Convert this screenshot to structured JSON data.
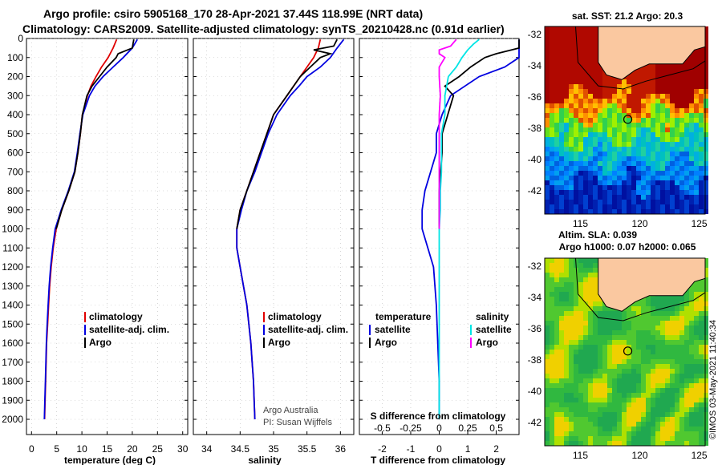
{
  "header": {
    "line1": "Argo profile: csiro 5905168_170 28-Apr-2021 37.44S 118.99E (NRT data)",
    "line2": "Climatology: CARS2009. Satellite-adjusted climatology: synTS_20210428.nc (0.91d earlier)"
  },
  "colors": {
    "climatology": "#e00000",
    "satellite": "#0000e0",
    "argo": "#000000",
    "salinity_sat": "#00e5e5",
    "salinity_argo": "#ff00ff",
    "land": "#fac8a0"
  },
  "chart_data": [
    {
      "type": "line",
      "panel": "temperature",
      "xlabel": "temperature (deg C)",
      "ylabel": "",
      "xlim": [
        -1,
        31
      ],
      "ylim": [
        2080,
        0
      ],
      "xticks": [
        0,
        5,
        10,
        15,
        20,
        25,
        30
      ],
      "yticks": [
        0,
        100,
        200,
        300,
        400,
        500,
        600,
        700,
        800,
        900,
        1000,
        1100,
        1200,
        1300,
        1400,
        1500,
        1600,
        1700,
        1800,
        1900,
        2000
      ],
      "legend": [
        "climatology",
        "satellite-adj. clim.",
        "Argo"
      ],
      "series": [
        {
          "name": "climatology",
          "depth": [
            5,
            50,
            100,
            150,
            200,
            250,
            300,
            400,
            500,
            600,
            700,
            800,
            900,
            1000,
            1100,
            1200,
            1300,
            1400,
            1500,
            1600,
            1700,
            1800,
            1900,
            2000
          ],
          "values": [
            16.9,
            16.2,
            15.2,
            13.9,
            12.8,
            11.8,
            11.1,
            10.1,
            9.7,
            9.2,
            8.6,
            7.4,
            6.0,
            4.9,
            4.3,
            3.9,
            3.6,
            3.4,
            3.2,
            3.0,
            2.9,
            2.8,
            2.7,
            2.6
          ]
        },
        {
          "name": "satellite-adj. clim.",
          "depth": [
            5,
            50,
            100,
            150,
            200,
            250,
            300,
            400,
            500,
            600,
            700,
            800,
            900,
            1000,
            1100,
            1200,
            1300,
            1400,
            1500,
            1600,
            1700,
            1800,
            1900,
            2000
          ],
          "values": [
            21.0,
            20.0,
            18.2,
            16.2,
            14.2,
            12.6,
            11.5,
            10.2,
            9.6,
            9.1,
            8.5,
            7.3,
            5.9,
            4.7,
            4.2,
            3.8,
            3.5,
            3.3,
            3.1,
            2.95,
            2.85,
            2.75,
            2.65,
            2.55
          ]
        },
        {
          "name": "Argo",
          "depth": [
            5,
            50,
            80,
            100,
            150,
            200,
            250,
            300,
            400,
            500,
            600,
            700,
            800,
            900,
            1000
          ],
          "values": [
            20.3,
            20.0,
            17.2,
            16.8,
            15.0,
            13.5,
            12.0,
            11.0,
            10.1,
            9.7,
            9.2,
            8.6,
            7.4,
            6.0,
            4.9
          ]
        }
      ]
    },
    {
      "type": "line",
      "panel": "salinity",
      "xlabel": "salinity",
      "ylabel": "",
      "xlim": [
        33.8,
        36.2
      ],
      "ylim": [
        2080,
        0
      ],
      "xticks": [
        34,
        34.5,
        35,
        35.5,
        36
      ],
      "xticklabels": [
        "34",
        "34.5",
        "35",
        "35.5",
        "36"
      ],
      "legend": [
        "climatology",
        "satellite-adj. clim.",
        "Argo"
      ],
      "series": [
        {
          "name": "climatology",
          "depth": [
            5,
            50,
            100,
            150,
            200,
            250,
            300,
            400,
            500,
            600,
            700,
            800,
            900,
            1000,
            1100,
            1200,
            1300,
            1400,
            1500,
            1600,
            1700,
            1800,
            1900,
            2000
          ],
          "values": [
            35.7,
            35.67,
            35.6,
            35.5,
            35.4,
            35.3,
            35.2,
            35.0,
            34.9,
            34.8,
            34.7,
            34.6,
            34.5,
            34.45,
            34.45,
            34.5,
            34.55,
            34.6,
            34.63,
            34.66,
            34.68,
            34.7,
            34.71,
            34.72
          ]
        },
        {
          "name": "satellite-adj. clim.",
          "depth": [
            5,
            50,
            100,
            150,
            200,
            250,
            300,
            400,
            500,
            600,
            700,
            800,
            900,
            1000,
            1100,
            1200,
            1300,
            1400,
            1500,
            1600,
            1700,
            1800,
            1900,
            2000
          ],
          "values": [
            36.05,
            35.95,
            35.85,
            35.7,
            35.5,
            35.38,
            35.25,
            35.05,
            34.92,
            34.82,
            34.72,
            34.6,
            34.52,
            34.45,
            34.45,
            34.5,
            34.55,
            34.6,
            34.63,
            34.66,
            34.68,
            34.7,
            34.71,
            34.72
          ]
        },
        {
          "name": "Argo",
          "depth": [
            5,
            40,
            60,
            80,
            100,
            150,
            200,
            250,
            300,
            400,
            500,
            600,
            700,
            800,
            900,
            1000
          ],
          "values": [
            35.95,
            35.9,
            35.6,
            35.85,
            35.7,
            35.55,
            35.4,
            35.3,
            35.2,
            35.0,
            34.9,
            34.8,
            34.7,
            34.6,
            34.5,
            34.45
          ]
        }
      ]
    },
    {
      "type": "line",
      "panel": "difference",
      "xlabel": "T difference from climatology",
      "secondary_xlabel": "S difference from climatology",
      "xlim": [
        -2.8,
        2.8
      ],
      "ylim": [
        2080,
        0
      ],
      "xticks": [
        -2,
        -1,
        0,
        1,
        2
      ],
      "secondary_xticks": [
        -0.5,
        -0.25,
        0,
        0.25,
        0.5
      ],
      "secondary_xticklabels": [
        "-0.5",
        "-0.25",
        "0",
        "0.25",
        "0.5"
      ],
      "legend": {
        "temperature": [
          "satellite",
          "Argo"
        ],
        "salinity": [
          "satellite",
          "Argo"
        ]
      },
      "legend_headers": {
        "temperature": "temperature",
        "salinity": "salinity"
      },
      "series": [
        {
          "name": "T satellite",
          "depth": [
            5,
            50,
            100,
            150,
            200,
            300,
            400,
            500,
            600,
            700,
            800,
            900,
            1000,
            1100,
            1200,
            1400,
            1600,
            1800,
            2000
          ],
          "values": [
            4.0,
            3.8,
            3.0,
            2.3,
            1.4,
            0.4,
            0.1,
            -0.1,
            -0.1,
            -0.3,
            -0.5,
            -0.6,
            -0.6,
            -0.4,
            -0.2,
            -0.1,
            -0.05,
            0,
            0
          ]
        },
        {
          "name": "T Argo",
          "depth": [
            5,
            50,
            80,
            100,
            150,
            200,
            250,
            300,
            400,
            500,
            600,
            700,
            800,
            900,
            1000
          ],
          "values": [
            3.4,
            3.8,
            2.0,
            1.6,
            1.1,
            0.7,
            0.2,
            0.5,
            0.3,
            0.1,
            0.1,
            0.05,
            0,
            0,
            0
          ]
        },
        {
          "name": "S satellite",
          "depth": [
            5,
            30,
            60,
            100,
            150,
            200,
            300,
            400,
            500,
            600,
            700,
            800,
            900,
            1000,
            1200,
            1500,
            2000
          ],
          "values": [
            0.35,
            0.3,
            0.25,
            0.2,
            0.15,
            0.08,
            0.05,
            0.05,
            0.02,
            0.02,
            0.02,
            0.01,
            0.01,
            0,
            0,
            0,
            0
          ]
        },
        {
          "name": "S Argo",
          "depth": [
            5,
            40,
            60,
            80,
            100,
            150,
            200,
            300,
            400,
            500,
            600,
            700,
            800,
            900,
            1000
          ],
          "values": [
            0.15,
            0.1,
            0.0,
            0.0,
            0.05,
            0.0,
            0.0,
            0.01,
            0,
            0,
            0,
            0,
            0,
            0,
            0
          ]
        }
      ]
    },
    {
      "type": "heatmap",
      "panel": "sst-map",
      "title": "sat. SST: 21.2 Argo: 20.3",
      "xlim": [
        112,
        125.5
      ],
      "ylim": [
        -43.5,
        -31.5
      ],
      "xticks": [
        115,
        120,
        125
      ],
      "yticks": [
        -32,
        -34,
        -36,
        -38,
        -40,
        -42
      ],
      "profile_location": [
        118.99,
        -37.44
      ]
    },
    {
      "type": "heatmap",
      "panel": "sla-map",
      "title": "Altim. SLA: 0.039",
      "subtitle": "Argo h1000: 0.07 h2000: 0.065",
      "xlim": [
        112,
        125.5
      ],
      "ylim": [
        -43.5,
        -31.5
      ],
      "xticks": [
        115,
        120,
        125
      ],
      "yticks": [
        -32,
        -34,
        -36,
        -38,
        -40,
        -42
      ],
      "profile_location": [
        118.99,
        -37.44
      ]
    }
  ],
  "credits": {
    "line1": "Argo Australia",
    "line2": "PI: Susan Wijffels"
  },
  "stamp": "©IMOS 03-May-2021 11:40:34"
}
